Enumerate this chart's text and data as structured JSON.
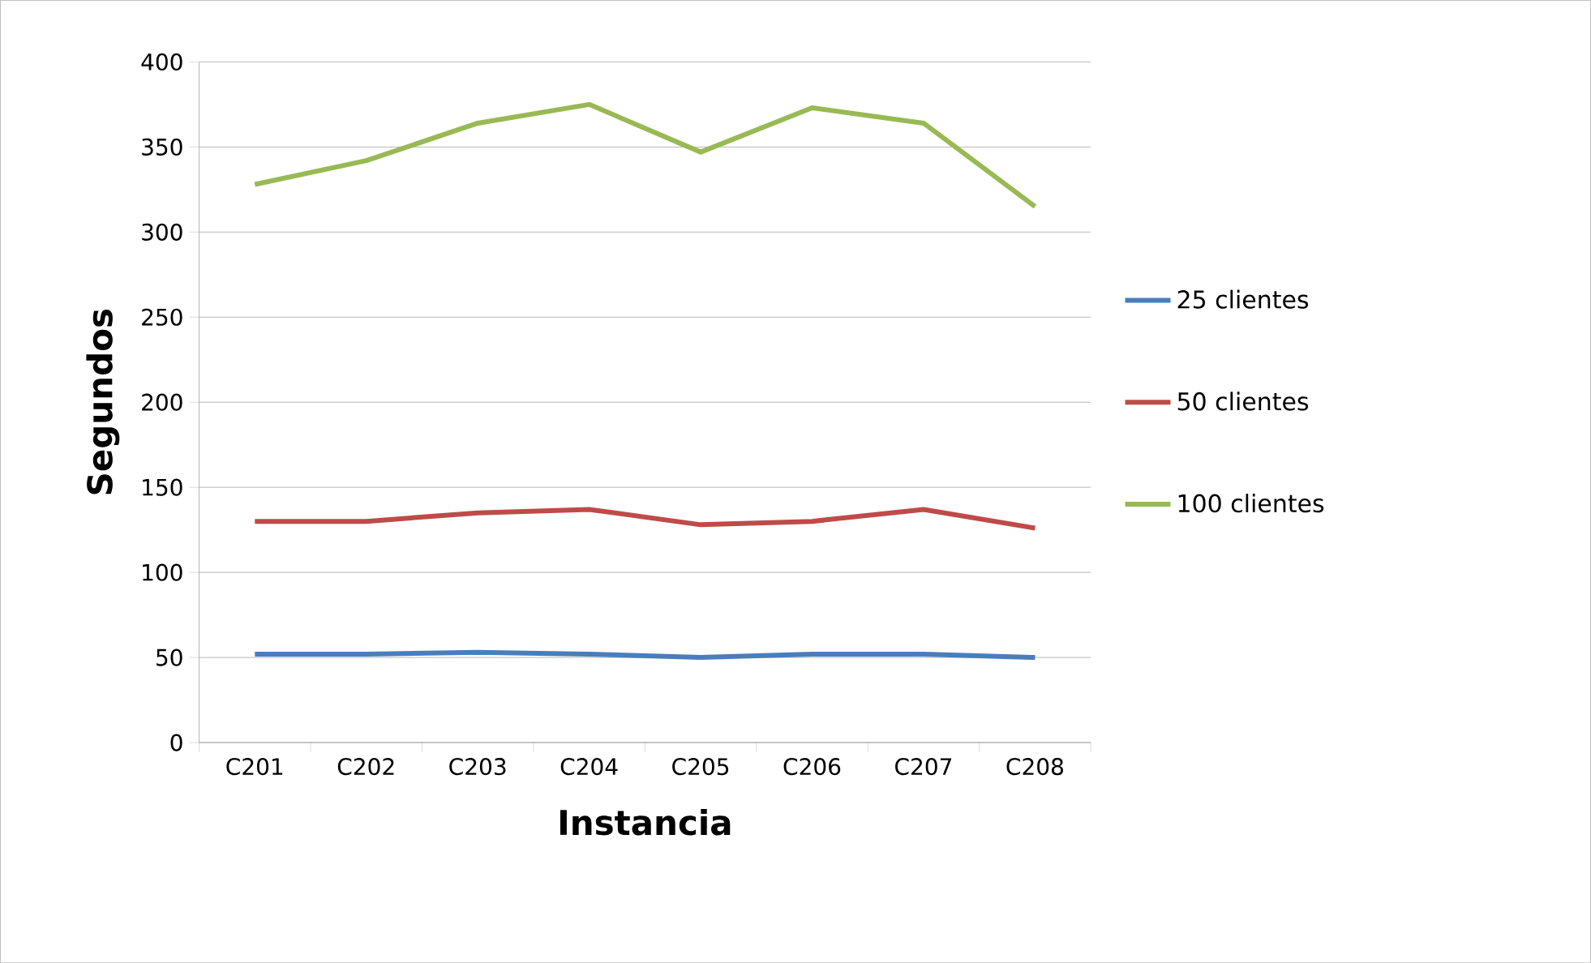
{
  "chart_data": {
    "type": "line",
    "xlabel": "Instancia",
    "ylabel": "Segundos",
    "categories": [
      "C201",
      "C202",
      "C203",
      "C204",
      "C205",
      "C206",
      "C207",
      "C208"
    ],
    "series": [
      {
        "name": "25 clientes",
        "color": "#4a7ebb",
        "values": [
          52,
          52,
          53,
          52,
          50,
          52,
          52,
          50
        ]
      },
      {
        "name": "50 clientes",
        "color": "#be4b48",
        "values": [
          130,
          130,
          135,
          137,
          128,
          130,
          137,
          126
        ]
      },
      {
        "name": "100 clientes",
        "color": "#98b954",
        "values": [
          328,
          342,
          364,
          375,
          347,
          373,
          364,
          315
        ]
      }
    ],
    "ylim": [
      0,
      400
    ],
    "yticks": [
      0,
      50,
      100,
      150,
      200,
      250,
      300,
      350,
      400
    ],
    "grid": "y",
    "legend": "right",
    "marker": "none",
    "line_style": "solid"
  }
}
